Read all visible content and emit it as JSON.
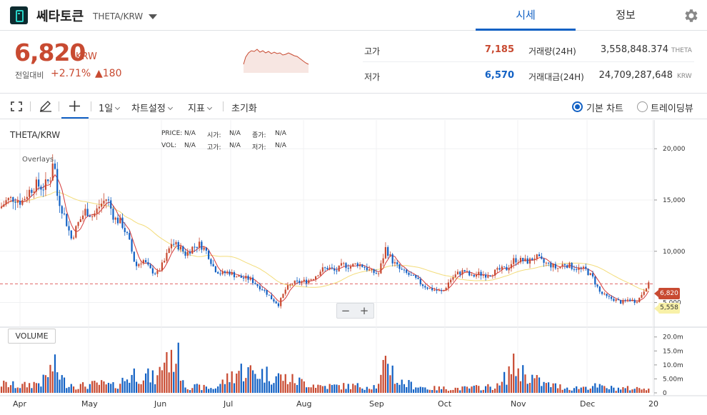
{
  "header": {
    "coin_name": "쎄타토큰",
    "pair": "THETA/KRW",
    "tabs": [
      "시세",
      "정보"
    ]
  },
  "summary": {
    "price": "6,820",
    "price_unit": "KRW",
    "change_label": "전일대비",
    "change_rate": "+2.71%",
    "change_amount": "▲180",
    "high_label": "고가",
    "high_value": "7,185",
    "low_label": "저가",
    "low_value": "6,570",
    "volume_label": "거래량(24H)",
    "volume_value": "3,558,848.374",
    "volume_unit": "THETA",
    "trade_value_label": "거래대금(24H)",
    "trade_value_value": "24,709,287,648",
    "trade_value_unit": "KRW"
  },
  "toolbar": {
    "interval": "1일",
    "chart_settings": "차트설정",
    "indicators": "지표",
    "reset": "초기화",
    "basic_chart": "기본 차트",
    "trading_view": "트레이딩뷰"
  },
  "chart": {
    "title": "THETA/KRW",
    "overlays": "Overlays",
    "legend": {
      "price_label": "PRICE:",
      "price_value": "N/A",
      "open_label": "시가:",
      "open_value": "N/A",
      "close_label": "종가:",
      "close_value": "N/A",
      "vol_label": "VOL:",
      "vol_value": "N/A",
      "high_label": "고가:",
      "high_value": "N/A",
      "low_label": "저가:",
      "low_value": "N/A"
    },
    "volume_label": "VOLUME",
    "current_tag": "6,820",
    "ma_tag": "5,558",
    "zoom_minus": "−",
    "zoom_plus": "+",
    "colors": {
      "up": "#c84a31",
      "down": "#1261c4",
      "ma_short": "#d53a3a",
      "ma_long": "#f3dc7a",
      "price_line": "#e06666"
    }
  },
  "chart_data": {
    "type": "candlestick",
    "price_axis": {
      "ticks": [
        "20,000",
        "15,000",
        "10,000",
        "5,000"
      ],
      "tick_values": [
        20000,
        15000,
        10000,
        5000
      ],
      "ylim": [
        2600,
        22800
      ]
    },
    "volume_axis": {
      "ticks": [
        "20.0m",
        "15.0m",
        "10.0m",
        "5.00m",
        "0"
      ],
      "tick_values": [
        20,
        15,
        10,
        5,
        0
      ],
      "ylim": [
        0,
        23
      ]
    },
    "months": [
      "Apr",
      "May",
      "Jun",
      "Jul",
      "Aug",
      "Sep",
      "Oct",
      "Nov",
      "Dec",
      "20"
    ],
    "current_price": 6820,
    "close_trend": [
      [
        0,
        14200
      ],
      [
        10,
        15000
      ],
      [
        20,
        15200
      ],
      [
        30,
        14800
      ],
      [
        40,
        15800
      ],
      [
        50,
        16500
      ],
      [
        60,
        16200
      ],
      [
        70,
        17000
      ],
      [
        75,
        19500
      ],
      [
        80,
        15500
      ],
      [
        90,
        13500
      ],
      [
        100,
        11200
      ],
      [
        110,
        12800
      ],
      [
        120,
        14000
      ],
      [
        130,
        13400
      ],
      [
        140,
        14500
      ],
      [
        150,
        15200
      ],
      [
        160,
        13200
      ],
      [
        170,
        12800
      ],
      [
        180,
        11200
      ],
      [
        190,
        8500
      ],
      [
        200,
        9200
      ],
      [
        210,
        8200
      ],
      [
        220,
        7800
      ],
      [
        230,
        9000
      ],
      [
        240,
        10800
      ],
      [
        250,
        10500
      ],
      [
        260,
        9700
      ],
      [
        270,
        10400
      ],
      [
        280,
        10700
      ],
      [
        290,
        9900
      ],
      [
        300,
        8300
      ],
      [
        310,
        7800
      ],
      [
        320,
        8000
      ],
      [
        330,
        7600
      ],
      [
        340,
        7400
      ],
      [
        350,
        7300
      ],
      [
        360,
        6700
      ],
      [
        370,
        6200
      ],
      [
        380,
        5400
      ],
      [
        390,
        4800
      ],
      [
        400,
        6300
      ],
      [
        410,
        6900
      ],
      [
        420,
        7000
      ],
      [
        430,
        7100
      ],
      [
        440,
        7500
      ],
      [
        450,
        8200
      ],
      [
        460,
        8400
      ],
      [
        470,
        8000
      ],
      [
        480,
        8700
      ],
      [
        490,
        8500
      ],
      [
        500,
        8800
      ],
      [
        510,
        8500
      ],
      [
        520,
        8000
      ],
      [
        530,
        7800
      ],
      [
        540,
        10300
      ],
      [
        550,
        9000
      ],
      [
        560,
        8200
      ],
      [
        570,
        7800
      ],
      [
        580,
        7400
      ],
      [
        590,
        6800
      ],
      [
        600,
        6400
      ],
      [
        610,
        6200
      ],
      [
        620,
        6000
      ],
      [
        630,
        7200
      ],
      [
        640,
        7800
      ],
      [
        650,
        8100
      ],
      [
        660,
        7500
      ],
      [
        670,
        7800
      ],
      [
        680,
        7700
      ],
      [
        690,
        7900
      ],
      [
        700,
        8200
      ],
      [
        710,
        8300
      ],
      [
        720,
        9200
      ],
      [
        730,
        9100
      ],
      [
        740,
        9000
      ],
      [
        750,
        9500
      ],
      [
        760,
        8900
      ],
      [
        770,
        8700
      ],
      [
        780,
        8300
      ],
      [
        790,
        8800
      ],
      [
        800,
        8500
      ],
      [
        810,
        8300
      ],
      [
        820,
        8200
      ],
      [
        830,
        7400
      ],
      [
        840,
        6000
      ],
      [
        850,
        5500
      ],
      [
        860,
        5300
      ],
      [
        870,
        5000
      ],
      [
        880,
        5300
      ],
      [
        890,
        5100
      ],
      [
        895,
        5400
      ],
      [
        905,
        6600
      ],
      [
        910,
        6820
      ]
    ],
    "volume_trend": [
      [
        0,
        4
      ],
      [
        30,
        3
      ],
      [
        60,
        5
      ],
      [
        75,
        12
      ],
      [
        90,
        5
      ],
      [
        110,
        3
      ],
      [
        140,
        4
      ],
      [
        160,
        3
      ],
      [
        190,
        9
      ],
      [
        220,
        6
      ],
      [
        233,
        18
      ],
      [
        240,
        13
      ],
      [
        245,
        20
      ],
      [
        260,
        3
      ],
      [
        300,
        2
      ],
      [
        335,
        10
      ],
      [
        380,
        8
      ],
      [
        405,
        6
      ],
      [
        450,
        3
      ],
      [
        500,
        3
      ],
      [
        530,
        3
      ],
      [
        543,
        16
      ],
      [
        555,
        5
      ],
      [
        600,
        2
      ],
      [
        650,
        2
      ],
      [
        700,
        3
      ],
      [
        717,
        12
      ],
      [
        760,
        4
      ],
      [
        800,
        2
      ],
      [
        830,
        3
      ],
      [
        860,
        2
      ],
      [
        900,
        2
      ],
      [
        910,
        3
      ]
    ]
  }
}
